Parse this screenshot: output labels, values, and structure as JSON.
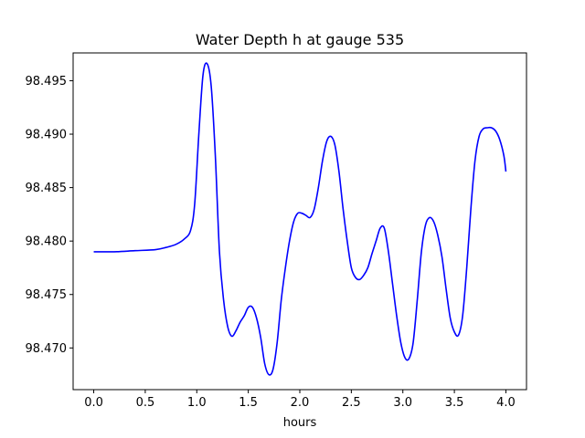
{
  "chart_data": {
    "type": "line",
    "title": "Water Depth h at gauge 535",
    "xlabel": "hours",
    "ylabel": "",
    "xlim": [
      -0.2,
      4.2
    ],
    "ylim": [
      98.4661,
      98.4976
    ],
    "grid": false,
    "xticks": [
      0.0,
      0.5,
      1.0,
      1.5,
      2.0,
      2.5,
      3.0,
      3.5,
      4.0
    ],
    "xtick_labels": [
      "0.0",
      "0.5",
      "1.0",
      "1.5",
      "2.0",
      "2.5",
      "3.0",
      "3.5",
      "4.0"
    ],
    "yticks": [
      98.47,
      98.475,
      98.48,
      98.485,
      98.49,
      98.495
    ],
    "ytick_labels": [
      "98.470",
      "98.475",
      "98.480",
      "98.485",
      "98.490",
      "98.495"
    ],
    "series": [
      {
        "color": "#0000ff",
        "x": [
          0.0,
          0.2,
          0.4,
          0.6,
          0.7,
          0.8,
          0.88,
          0.94,
          0.98,
          1.02,
          1.06,
          1.1,
          1.14,
          1.18,
          1.22,
          1.26,
          1.3,
          1.34,
          1.38,
          1.42,
          1.46,
          1.5,
          1.54,
          1.58,
          1.62,
          1.66,
          1.7,
          1.74,
          1.78,
          1.82,
          1.86,
          1.9,
          1.94,
          1.98,
          2.02,
          2.06,
          2.1,
          2.14,
          2.18,
          2.22,
          2.26,
          2.3,
          2.34,
          2.38,
          2.42,
          2.46,
          2.5,
          2.54,
          2.58,
          2.62,
          2.66,
          2.7,
          2.74,
          2.78,
          2.82,
          2.86,
          2.9,
          2.94,
          2.98,
          3.02,
          3.06,
          3.1,
          3.14,
          3.18,
          3.22,
          3.26,
          3.3,
          3.34,
          3.38,
          3.42,
          3.46,
          3.5,
          3.54,
          3.58,
          3.62,
          3.66,
          3.7,
          3.74,
          3.78,
          3.82,
          3.86,
          3.9,
          3.94,
          3.98,
          4.0
        ],
        "y": [
          98.479,
          98.479,
          98.4791,
          98.4792,
          98.4794,
          98.4797,
          98.4802,
          98.481,
          98.4835,
          98.49,
          98.4955,
          98.4966,
          98.4945,
          98.488,
          98.479,
          98.4745,
          98.472,
          98.4711,
          98.4716,
          98.4724,
          98.473,
          98.4738,
          98.4738,
          98.4728,
          98.471,
          98.4685,
          98.4675,
          98.468,
          98.4705,
          98.4745,
          98.4775,
          98.48,
          98.4818,
          98.4826,
          98.4826,
          98.4824,
          98.4822,
          98.483,
          98.485,
          98.4875,
          98.4893,
          98.4898,
          98.489,
          98.4865,
          98.483,
          98.48,
          98.4775,
          98.4766,
          98.4764,
          98.4768,
          98.4775,
          98.4788,
          98.48,
          98.4812,
          98.4812,
          98.479,
          98.476,
          98.473,
          98.4705,
          98.4691,
          98.469,
          98.4705,
          98.4745,
          98.479,
          98.4815,
          98.4822,
          98.4818,
          98.4805,
          98.4785,
          98.4755,
          98.4728,
          98.4715,
          98.4712,
          98.473,
          98.4775,
          98.483,
          98.4875,
          98.4898,
          98.4905,
          98.4906,
          98.4906,
          98.4903,
          98.4895,
          98.488,
          98.4865
        ]
      }
    ]
  }
}
